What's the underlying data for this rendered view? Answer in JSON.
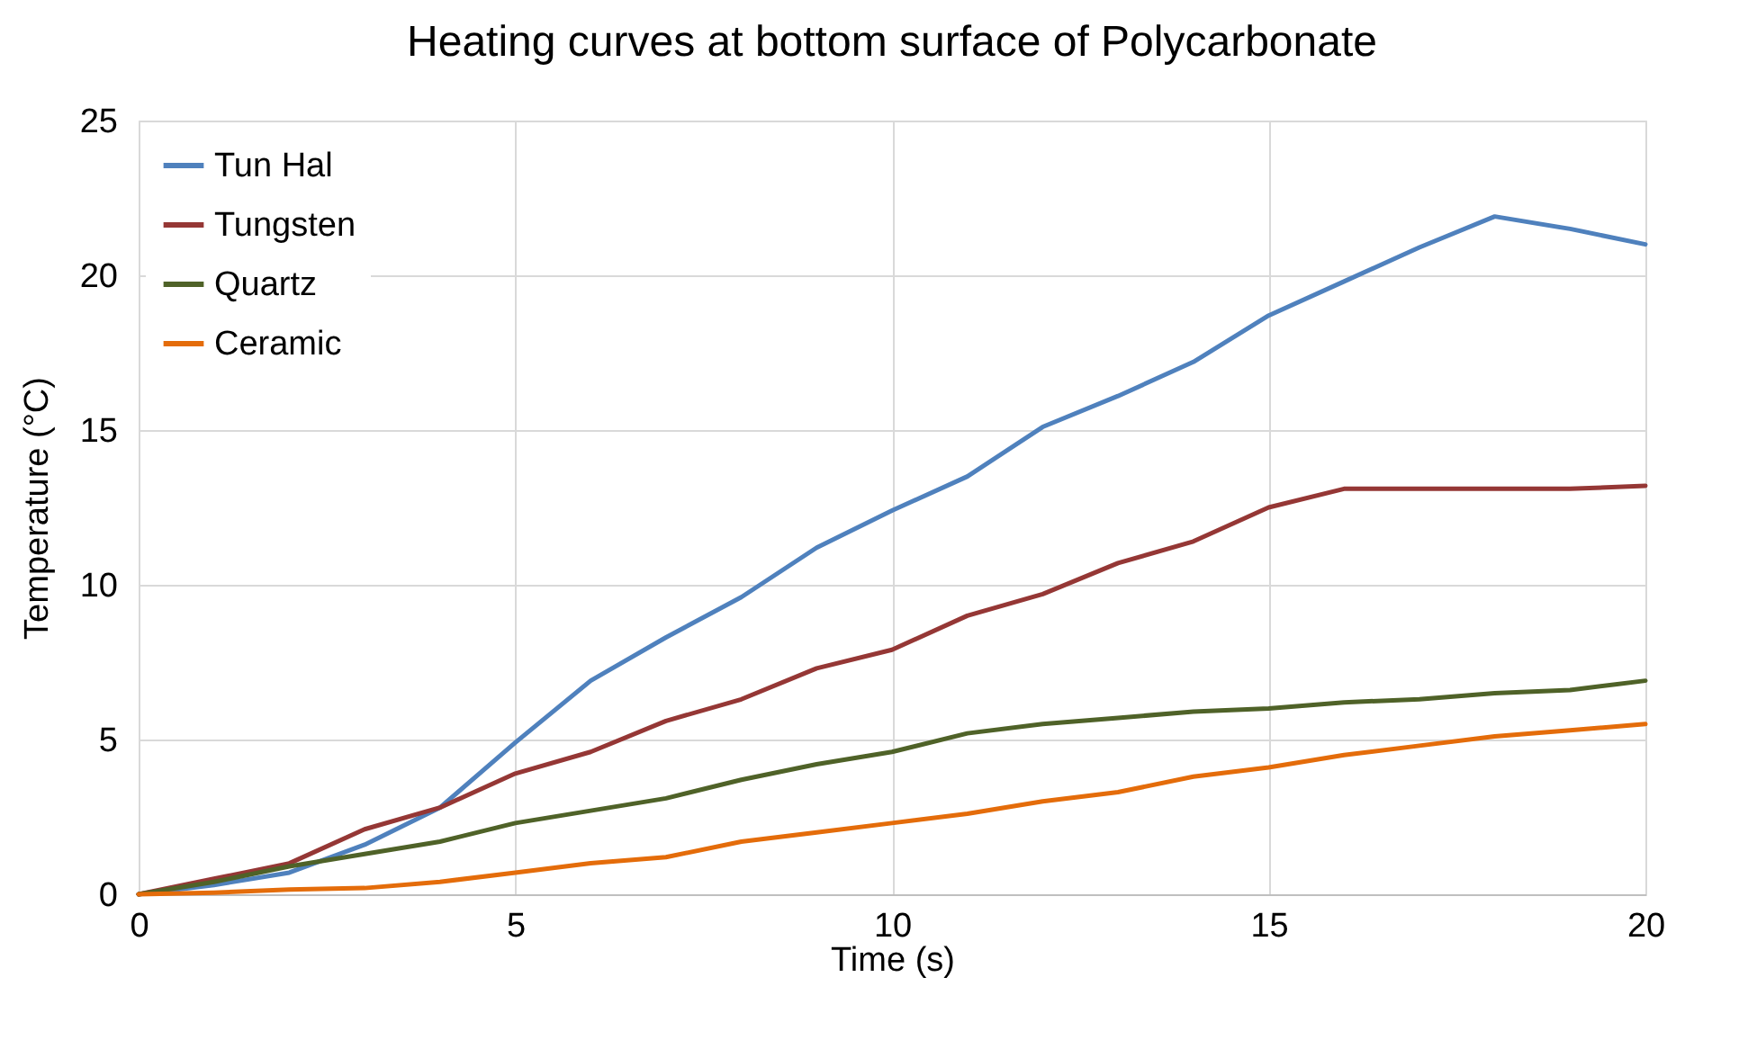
{
  "chart_data": {
    "type": "line",
    "title": "Heating curves at bottom surface of Polycarbonate",
    "xlabel": "Time (s)",
    "ylabel": "Temperature (°C)",
    "x": [
      0,
      1,
      2,
      3,
      4,
      5,
      6,
      7,
      8,
      9,
      10,
      11,
      12,
      13,
      14,
      15,
      16,
      17,
      18,
      19,
      20
    ],
    "series": [
      {
        "name": "Tun Hal",
        "color": "#4f81bd",
        "values": [
          0,
          0.3,
          0.7,
          1.6,
          2.8,
          4.9,
          6.9,
          8.3,
          9.6,
          11.2,
          12.4,
          13.5,
          15.1,
          16.1,
          17.2,
          18.7,
          19.8,
          20.9,
          21.9,
          21.5,
          21.0
        ]
      },
      {
        "name": "Tungsten",
        "color": "#953735",
        "values": [
          0,
          0.5,
          1.0,
          2.1,
          2.8,
          3.9,
          4.6,
          5.6,
          6.3,
          7.3,
          7.9,
          9.0,
          9.7,
          10.7,
          11.4,
          12.5,
          13.1,
          13.1,
          13.1,
          13.1,
          13.2
        ]
      },
      {
        "name": "Quartz",
        "color": "#4f6228",
        "values": [
          0,
          0.4,
          0.9,
          1.3,
          1.7,
          2.3,
          2.7,
          3.1,
          3.7,
          4.2,
          4.6,
          5.2,
          5.5,
          5.7,
          5.9,
          6.0,
          6.2,
          6.3,
          6.5,
          6.6,
          6.9
        ]
      },
      {
        "name": "Ceramic",
        "color": "#e46c0a",
        "values": [
          0,
          0.05,
          0.15,
          0.2,
          0.4,
          0.7,
          1.0,
          1.2,
          1.7,
          2.0,
          2.3,
          2.6,
          3.0,
          3.3,
          3.8,
          4.1,
          4.5,
          4.8,
          5.1,
          5.3,
          5.5
        ]
      }
    ],
    "xlim": [
      0,
      20
    ],
    "xticks": [
      0,
      5,
      10,
      15,
      20
    ],
    "ylim": [
      0,
      25
    ],
    "yticks": [
      0,
      5,
      10,
      15,
      20,
      25
    ],
    "grid": true,
    "legend": "top left",
    "marker": "none",
    "line_style": "solid"
  }
}
